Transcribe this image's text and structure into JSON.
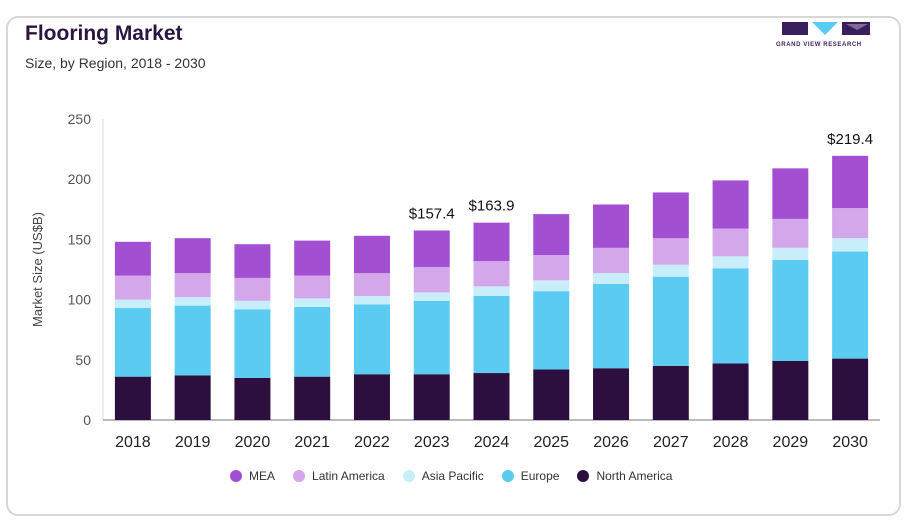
{
  "header": {
    "title": "Flooring Market",
    "subtitle": "Size, by Region, 2018 - 2030",
    "logo_text": "GRAND VIEW RESEARCH"
  },
  "colors": {
    "MEA": "#a34fd1",
    "Latin America": "#d4a6ea",
    "Asia Pacific": "#c9eefb",
    "Europe": "#5ccbf2",
    "North America": "#2d0f3f"
  },
  "chart_data": {
    "type": "bar",
    "stacked": true,
    "title": "Flooring Market",
    "subtitle": "Size, by Region, 2018 - 2030",
    "xlabel": "",
    "ylabel": "Market Size (US$B)",
    "ylim": [
      0,
      250
    ],
    "yticks": [
      0,
      50,
      100,
      150,
      200,
      250
    ],
    "grid": false,
    "legend_position": "bottom",
    "categories": [
      "2018",
      "2019",
      "2020",
      "2021",
      "2022",
      "2023",
      "2024",
      "2025",
      "2026",
      "2027",
      "2028",
      "2029",
      "2030"
    ],
    "series": [
      {
        "name": "North America",
        "values": [
          36,
          37,
          35,
          36,
          38,
          38,
          39,
          42,
          43,
          45,
          47,
          49,
          51
        ]
      },
      {
        "name": "Europe",
        "values": [
          57,
          58,
          57,
          58,
          58,
          61,
          64,
          65,
          70,
          74,
          79,
          84,
          89
        ]
      },
      {
        "name": "Asia Pacific",
        "values": [
          7,
          7,
          7,
          7,
          7,
          7,
          8,
          9,
          9,
          10,
          10,
          10,
          11
        ]
      },
      {
        "name": "Latin America",
        "values": [
          20,
          20,
          19,
          19,
          19,
          21,
          21,
          21,
          21,
          22,
          23,
          24,
          25
        ]
      },
      {
        "name": "MEA",
        "values": [
          28,
          29,
          28,
          29,
          31,
          30.4,
          31.9,
          34,
          36,
          38,
          40,
          42,
          43.4
        ]
      }
    ],
    "annotations": [
      {
        "category": "2023",
        "text": "$157.4"
      },
      {
        "category": "2024",
        "text": "$163.9"
      },
      {
        "category": "2030",
        "text": "$219.4"
      }
    ]
  }
}
